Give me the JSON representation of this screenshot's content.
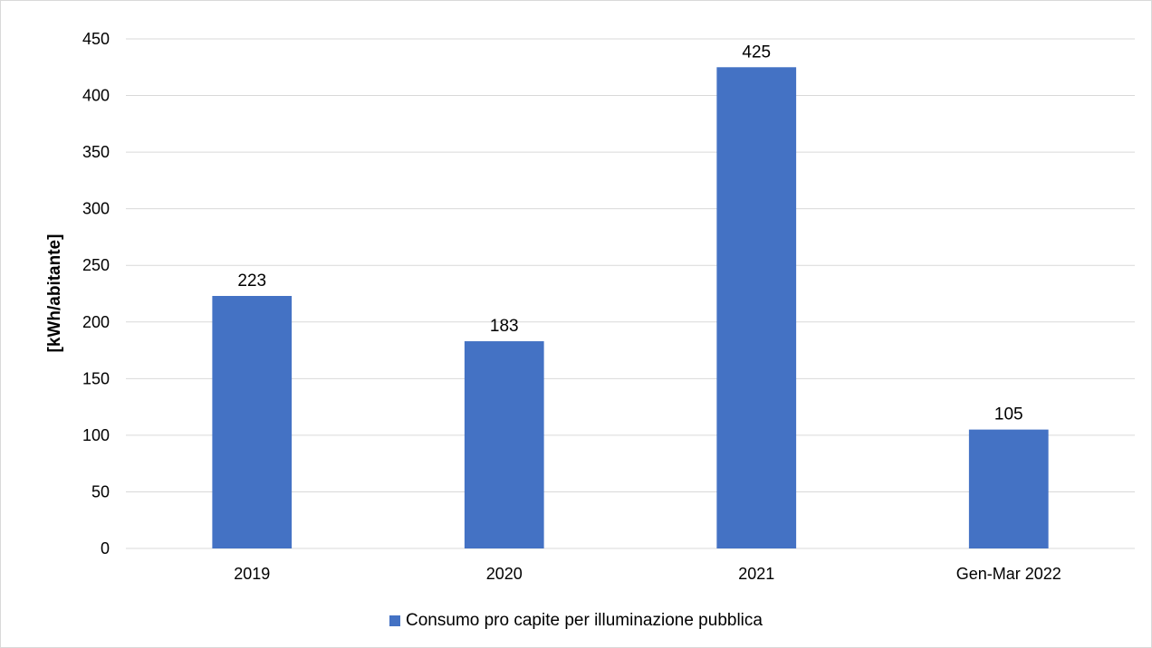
{
  "chart_data": {
    "type": "bar",
    "categories": [
      "2019",
      "2020",
      "2021",
      "Gen-Mar 2022"
    ],
    "series": [
      {
        "name": "Consumo pro capite per illuminazione pubblica",
        "values": [
          223,
          183,
          425,
          105
        ],
        "color": "#4472C4"
      }
    ],
    "data_labels": [
      "223",
      "183",
      "425",
      "105"
    ],
    "title": "",
    "xlabel": "",
    "ylabel": "[kWh/abitante]",
    "ylim": [
      0,
      450
    ],
    "yticks": [
      "0",
      "50",
      "100",
      "150",
      "200",
      "250",
      "300",
      "350",
      "400",
      "450"
    ],
    "grid": true,
    "legend_position": "bottom",
    "gridline_color": "#d9d9d9"
  }
}
